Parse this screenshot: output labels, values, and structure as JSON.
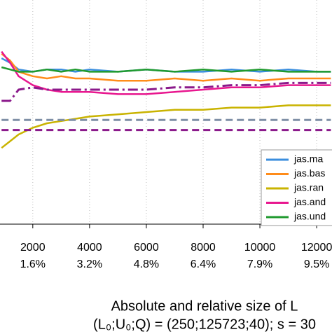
{
  "chart_data": {
    "type": "line",
    "x_label": "Absolute and relative size of L",
    "x_label_2": "(L₀;U₀;Q) = (250;125723;40); s = 30",
    "x": [
      900,
      1200,
      1500,
      2000,
      2500,
      3000,
      3500,
      4000,
      5000,
      6000,
      7000,
      8000,
      9000,
      10000,
      11000,
      12000,
      12500
    ],
    "xlim": [
      845,
      12540
    ],
    "ylim": [
      0,
      100
    ],
    "xticks": [
      {
        "value": 2000,
        "label": "2000",
        "sublabel": "1.6%"
      },
      {
        "value": 4000,
        "label": "4000",
        "sublabel": "3.2%"
      },
      {
        "value": 6000,
        "label": "6000",
        "sublabel": "4.8%"
      },
      {
        "value": 8000,
        "label": "8000",
        "sublabel": "6.4%"
      },
      {
        "value": 10000,
        "label": "10000",
        "sublabel": "7.9%"
      },
      {
        "value": 12000,
        "label": "12000",
        "sublabel": "9.5%"
      }
    ],
    "grid": true,
    "legend": "lower right",
    "series": [
      {
        "name": "jas.ma",
        "color": "#3b8ede",
        "values": [
          74,
          72,
          69,
          68,
          69,
          69,
          68,
          69,
          68,
          69,
          68,
          68,
          69,
          68,
          69,
          68,
          68
        ]
      },
      {
        "name": "jas.bas",
        "color": "#ff8c1a",
        "values": [
          76,
          73,
          68,
          66,
          65,
          66,
          65,
          65,
          64,
          64,
          65,
          64,
          65,
          64,
          65,
          65,
          65
        ]
      },
      {
        "name": "jas.ran",
        "color": "#c9b300",
        "values": [
          34,
          37,
          40,
          43,
          45,
          46,
          47,
          48,
          49,
          50,
          51,
          51,
          52,
          52,
          53,
          53,
          53
        ]
      },
      {
        "name": "jas.and",
        "color": "#e8178f",
        "values": [
          77,
          72,
          66,
          62,
          60,
          59,
          59,
          59,
          58,
          58,
          59,
          60,
          61,
          61,
          62,
          62,
          62
        ]
      },
      {
        "name": "jas.und",
        "color": "#1f9a2e",
        "values": [
          70,
          69,
          68,
          68,
          69,
          68,
          69,
          68,
          68,
          69,
          68,
          69,
          68,
          69,
          68,
          68,
          68
        ]
      },
      {
        "color": "#8b1a8b",
        "style": "dashdot",
        "values": [
          55,
          55,
          60,
          61,
          60,
          60,
          60,
          60,
          60,
          60,
          61,
          61,
          62,
          62,
          63,
          63,
          63
        ]
      },
      {
        "color": "#7f8fa6",
        "style": "dashed",
        "values": [
          46.5,
          46.5,
          46.5,
          46.5,
          46.5,
          46.5,
          46.5,
          46.5,
          46.5,
          46.5,
          46.5,
          46.5,
          46.5,
          46.5,
          46.5,
          46.5,
          46.5
        ]
      },
      {
        "color": "#8b1a8b",
        "style": "dashed",
        "values": [
          42,
          42,
          42,
          42,
          42,
          42,
          42,
          42,
          42,
          42,
          42,
          42,
          42,
          42,
          42,
          42,
          42
        ]
      }
    ]
  }
}
